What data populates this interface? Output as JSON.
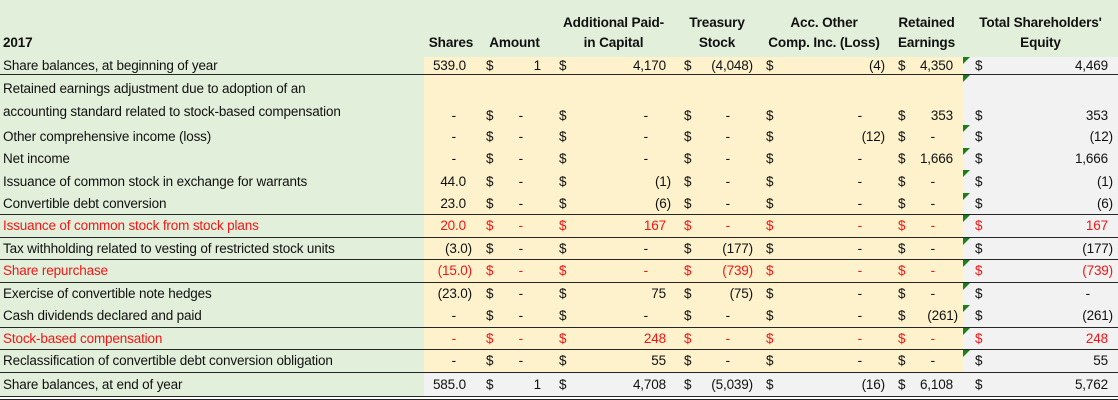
{
  "colors": {
    "label_background": "#e2efda",
    "values_background": "#fdf2cc",
    "total_background": "#f2f2f2",
    "highlight_text": "#f21616",
    "flag_triangle": "#1b7e1b",
    "border": "#262626"
  },
  "currency_symbol": "$",
  "header": {
    "year": "2017",
    "columns": [
      {
        "line1": "",
        "line2": "Shares"
      },
      {
        "line1": "",
        "line2": "Amount"
      },
      {
        "line1": "Additional Paid-",
        "line2": "in Capital"
      },
      {
        "line1": "Treasury",
        "line2": "Stock"
      },
      {
        "line1": "Acc. Other",
        "line2": "Comp. Inc. (Loss)"
      },
      {
        "line1": "Retained",
        "line2": "Earnings"
      },
      {
        "line1": "Total Shareholders'",
        "line2": "Equity"
      }
    ]
  },
  "rows": [
    {
      "label": "Share balances, at beginning of year",
      "shares": "539.0",
      "amount": "1",
      "apic": "4,170",
      "treasury": "(4,048)",
      "aoci": "(4)",
      "retained": "4,350",
      "total": "4,469",
      "red": false,
      "first": true,
      "tall": false,
      "gray": false,
      "tri": true,
      "bb": true,
      "total_row": false
    },
    {
      "label": "Retained earnings adjustment due to adoption of an\naccounting standard related to stock-based compensation",
      "shares": "-",
      "amount": "-",
      "apic": "-",
      "treasury": "-",
      "aoci": "-",
      "retained": "353",
      "total": "353",
      "red": false,
      "first": false,
      "tall": true,
      "gray": false,
      "tri": true,
      "bb": false,
      "total_row": false
    },
    {
      "label": "Other comprehensive income (loss)",
      "shares": "-",
      "amount": "-",
      "apic": "-",
      "treasury": "-",
      "aoci": "(12)",
      "retained": "-",
      "total": "(12)",
      "red": false,
      "first": false,
      "tall": false,
      "gray": false,
      "tri": true,
      "bb": false,
      "total_row": false
    },
    {
      "label": "Net income",
      "shares": "-",
      "amount": "-",
      "apic": "-",
      "treasury": "-",
      "aoci": "-",
      "retained": "1,666",
      "total": "1,666",
      "red": false,
      "first": false,
      "tall": false,
      "gray": false,
      "tri": true,
      "bb": false,
      "total_row": false
    },
    {
      "label": "Issuance of common stock in exchange for warrants",
      "shares": "44.0",
      "amount": "-",
      "apic": "(1)",
      "treasury": "-",
      "aoci": "-",
      "retained": "-",
      "total": "(1)",
      "red": false,
      "first": false,
      "tall": false,
      "gray": false,
      "tri": true,
      "bb": false,
      "total_row": false
    },
    {
      "label": "Convertible debt conversion",
      "shares": "23.0",
      "amount": "-",
      "apic": "(6)",
      "treasury": "-",
      "aoci": "-",
      "retained": "-",
      "total": "(6)",
      "red": false,
      "first": false,
      "tall": false,
      "gray": false,
      "tri": true,
      "bb": true,
      "total_row": false
    },
    {
      "label": "Issuance of common stock from stock plans",
      "shares": "20.0",
      "amount": "-",
      "apic": "167",
      "treasury": "-",
      "aoci": "-",
      "retained": "-",
      "total": "167",
      "red": true,
      "first": false,
      "tall": false,
      "gray": false,
      "tri": true,
      "bb": true,
      "total_row": false
    },
    {
      "label": "Tax withholding related to vesting of restricted stock units",
      "shares": "(3.0)",
      "amount": "-",
      "apic": "-",
      "treasury": "(177)",
      "aoci": "-",
      "retained": "-",
      "total": "(177)",
      "red": false,
      "first": false,
      "tall": false,
      "gray": false,
      "tri": true,
      "bb": true,
      "total_row": false
    },
    {
      "label": "Share repurchase",
      "shares": "(15.0)",
      "amount": "-",
      "apic": "-",
      "treasury": "(739)",
      "aoci": "-",
      "retained": "-",
      "total": "(739)",
      "red": true,
      "first": false,
      "tall": false,
      "gray": false,
      "tri": true,
      "bb": true,
      "total_row": false
    },
    {
      "label": "Exercise of convertible note hedges",
      "shares": "(23.0)",
      "amount": "-",
      "apic": "75",
      "treasury": "(75)",
      "aoci": "-",
      "retained": "-",
      "total": "-",
      "red": false,
      "first": false,
      "tall": false,
      "gray": false,
      "tri": true,
      "bb": false,
      "total_row": false
    },
    {
      "label": "Cash dividends declared and paid",
      "shares": "-",
      "amount": "-",
      "apic": "-",
      "treasury": "-",
      "aoci": "-",
      "retained": "(261)",
      "total": "(261)",
      "red": false,
      "first": false,
      "tall": false,
      "gray": false,
      "tri": true,
      "bb": true,
      "total_row": false
    },
    {
      "label": "Stock-based compensation",
      "shares": "-",
      "amount": "-",
      "apic": "248",
      "treasury": "-",
      "aoci": "-",
      "retained": "-",
      "total": "248",
      "red": true,
      "first": false,
      "tall": false,
      "gray": false,
      "tri": true,
      "bb": true,
      "total_row": false
    },
    {
      "label": "Reclassification of convertible debt conversion obligation",
      "shares": "-",
      "amount": "-",
      "apic": "55",
      "treasury": "-",
      "aoci": "-",
      "retained": "-",
      "total": "55",
      "red": false,
      "first": false,
      "tall": false,
      "gray": false,
      "tri": true,
      "bb": true,
      "total_row": false
    },
    {
      "label": "Share balances, at end of year",
      "shares": "585.0",
      "amount": "1",
      "apic": "4,708",
      "treasury": "(5,039)",
      "aoci": "(16)",
      "retained": "6,108",
      "total": "5,762",
      "red": false,
      "first": false,
      "tall": false,
      "gray": true,
      "tri": false,
      "bb": false,
      "total_row": true
    }
  ]
}
